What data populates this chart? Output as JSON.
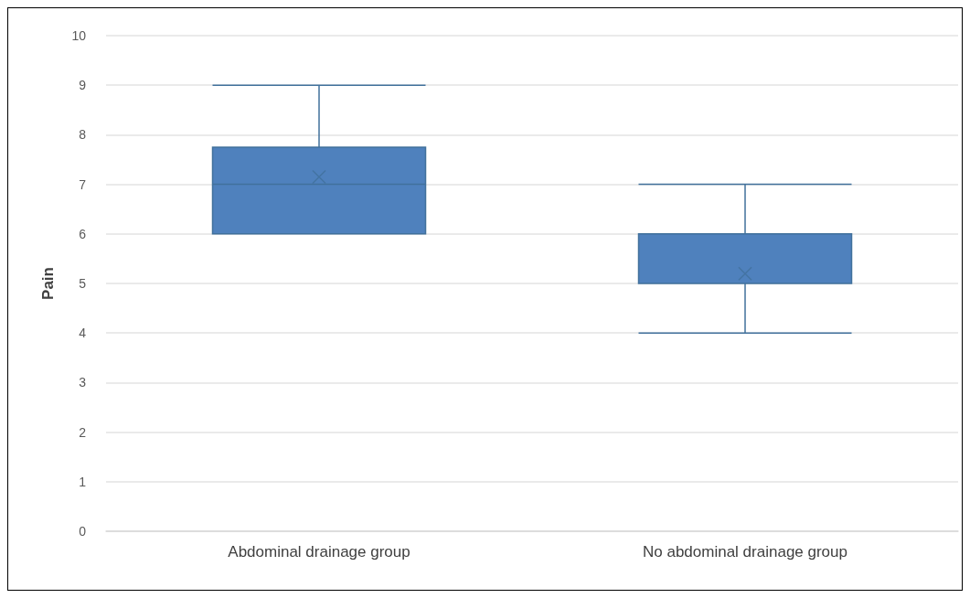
{
  "chart_data": {
    "type": "box",
    "ylabel": "Pain",
    "categories": [
      "Abdominal drainage group",
      "No abdominal drainage group"
    ],
    "color": "#4f81bd",
    "boxes": [
      {
        "low": 6,
        "q1": 6,
        "median": 7,
        "q3": 7.75,
        "high": 9,
        "mean": 7.15
      },
      {
        "low": 4,
        "q1": 5,
        "median": 5,
        "q3": 6,
        "high": 7,
        "mean": 5.2
      }
    ],
    "ylim": [
      0,
      10
    ],
    "yticks": [
      0,
      1,
      2,
      3,
      4,
      5,
      6,
      7,
      8,
      9,
      10
    ],
    "grid": "y",
    "marker": "cross"
  }
}
